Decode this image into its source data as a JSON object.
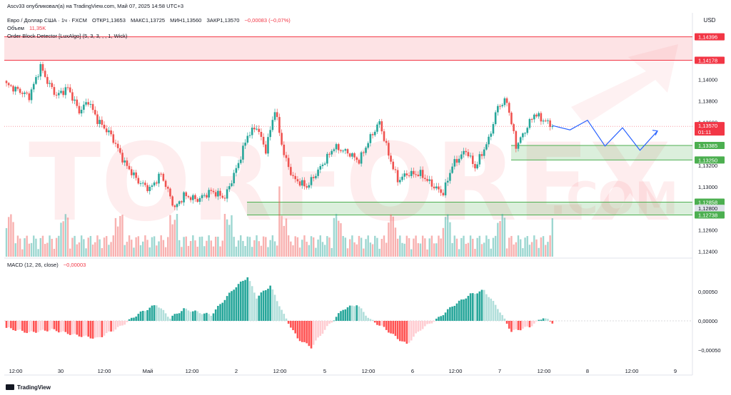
{
  "header": {
    "published_line": "Ascv33 опубликовал(а) на TradingView.com, Май 07, 2025 14:58 UTC+3",
    "symbol": "Евро / Доллар США · 1ч · FXCM",
    "open": "ОТКР1,13653",
    "high": "МАКС1,13725",
    "low": "МИН1,13560",
    "close": "ЗАКР1,13570",
    "change": "−0,00083 (−0,07%)",
    "volume_label": "Объем",
    "volume_value": "11,35K",
    "indicator": "Order Block Detector [LuxAlgo] (5, 3, 3, , , 1, Wick)",
    "macd_label": "MACD (12, 26, close)",
    "macd_value": "−0,00003"
  },
  "currency": "USD",
  "watermark": {
    "line1": "TORFOREX",
    "line2": ".COM"
  },
  "footer": {
    "brand": "TradingView"
  },
  "colors": {
    "up": "#26a69a",
    "down": "#ef5350",
    "zone_red": "#f23645",
    "zone_green": "#4caf50",
    "projection": "#2962ff"
  },
  "chart_data": [
    {
      "type": "candlestick",
      "title": "Евро / Доллар США · 1ч · FXCM",
      "x_ticks": [
        "12:00",
        "30",
        "12:00",
        "Май",
        "12:00",
        "2",
        "12:00",
        "5",
        "12:00",
        "6",
        "12:00",
        "7",
        "12:00",
        "8",
        "12:00",
        "9"
      ],
      "y_ticks": [
        "1,14000",
        "1,13800",
        "1,13600",
        "1,13200",
        "1,13000",
        "1,12600",
        "1,12400"
      ],
      "ylim": [
        1.1235,
        1.145
      ],
      "price_labels": [
        {
          "value": "1,14396",
          "kind": "red"
        },
        {
          "value": "1,14178",
          "kind": "red"
        },
        {
          "value": "1,13570",
          "kind": "current",
          "sub": "01:11"
        },
        {
          "value": "1,13385",
          "kind": "green"
        },
        {
          "value": "1,13250",
          "kind": "green"
        },
        {
          "value": "1,12858",
          "kind": "green"
        },
        {
          "value": "1,12800",
          "kind": "grey"
        },
        {
          "value": "1,12738",
          "kind": "green"
        }
      ],
      "zones": [
        {
          "kind": "bearish",
          "top": 1.14396,
          "bottom": 1.14178
        },
        {
          "kind": "bullish",
          "top": 1.13385,
          "bottom": 1.1325
        },
        {
          "kind": "bullish",
          "top": 1.12858,
          "bottom": 1.12738
        }
      ],
      "close_anchors": [
        [
          0,
          1.1395
        ],
        [
          5,
          1.139
        ],
        [
          10,
          1.1384
        ],
        [
          15,
          1.1412
        ],
        [
          18,
          1.1398
        ],
        [
          22,
          1.1385
        ],
        [
          27,
          1.1392
        ],
        [
          32,
          1.137
        ],
        [
          36,
          1.138
        ],
        [
          40,
          1.1362
        ],
        [
          46,
          1.1348
        ],
        [
          52,
          1.1322
        ],
        [
          58,
          1.1305
        ],
        [
          63,
          1.1298
        ],
        [
          68,
          1.1312
        ],
        [
          74,
          1.128
        ],
        [
          78,
          1.1292
        ],
        [
          84,
          1.1288
        ],
        [
          90,
          1.1296
        ],
        [
          96,
          1.129
        ],
        [
          102,
          1.1322
        ],
        [
          106,
          1.1348
        ],
        [
          110,
          1.1356
        ],
        [
          114,
          1.1334
        ],
        [
          118,
          1.1372
        ],
        [
          122,
          1.133
        ],
        [
          126,
          1.1308
        ],
        [
          132,
          1.13
        ],
        [
          138,
          1.1318
        ],
        [
          144,
          1.1337
        ],
        [
          150,
          1.1332
        ],
        [
          155,
          1.1324
        ],
        [
          160,
          1.1346
        ],
        [
          164,
          1.136
        ],
        [
          168,
          1.133
        ],
        [
          172,
          1.1306
        ],
        [
          176,
          1.1312
        ],
        [
          182,
          1.1312
        ],
        [
          188,
          1.13
        ],
        [
          192,
          1.1294
        ],
        [
          196,
          1.132
        ],
        [
          202,
          1.1334
        ],
        [
          206,
          1.1318
        ],
        [
          212,
          1.1344
        ],
        [
          216,
          1.1375
        ],
        [
          220,
          1.138
        ],
        [
          224,
          1.1338
        ],
        [
          228,
          1.1352
        ],
        [
          232,
          1.1368
        ],
        [
          236,
          1.1362
        ],
        [
          240,
          1.1357
        ]
      ],
      "projection_path": [
        [
          1.1357
        ],
        [
          1.1353
        ],
        [
          1.1362
        ],
        [
          1.1338
        ],
        [
          1.1355
        ],
        [
          1.1334
        ],
        [
          1.1352
        ]
      ],
      "volume_label": "Объем",
      "macd": {
        "y_ticks": [
          "0,00050",
          "0,00000",
          "−0,00050"
        ],
        "ylim": [
          -0.00068,
          0.00085
        ],
        "anchors": [
          [
            0,
            -0.00012
          ],
          [
            10,
            -0.0002
          ],
          [
            20,
            -0.00015
          ],
          [
            30,
            -0.00024
          ],
          [
            40,
            -0.0003
          ],
          [
            50,
            -0.0001
          ],
          [
            58,
            0.00012
          ],
          [
            66,
            0.00028
          ],
          [
            72,
            5e-05
          ],
          [
            78,
            0.0002
          ],
          [
            90,
            0.0001
          ],
          [
            100,
            0.00055
          ],
          [
            106,
            0.00075
          ],
          [
            110,
            0.0004
          ],
          [
            116,
            0.0006
          ],
          [
            122,
            0.0001
          ],
          [
            128,
            -0.0003
          ],
          [
            134,
            -0.00045
          ],
          [
            140,
            -0.00015
          ],
          [
            148,
            0.0002
          ],
          [
            154,
            0.00028
          ],
          [
            160,
            2e-05
          ],
          [
            166,
            -0.00012
          ],
          [
            172,
            -0.0003
          ],
          [
            176,
            -0.0004
          ],
          [
            182,
            -0.00015
          ],
          [
            190,
            5e-05
          ],
          [
            196,
            0.00025
          ],
          [
            204,
            0.00045
          ],
          [
            210,
            0.00052
          ],
          [
            216,
            0.00022
          ],
          [
            222,
            -0.00018
          ],
          [
            230,
            -0.0001
          ],
          [
            236,
            6e-05
          ],
          [
            240,
            -3e-05
          ]
        ]
      }
    }
  ]
}
